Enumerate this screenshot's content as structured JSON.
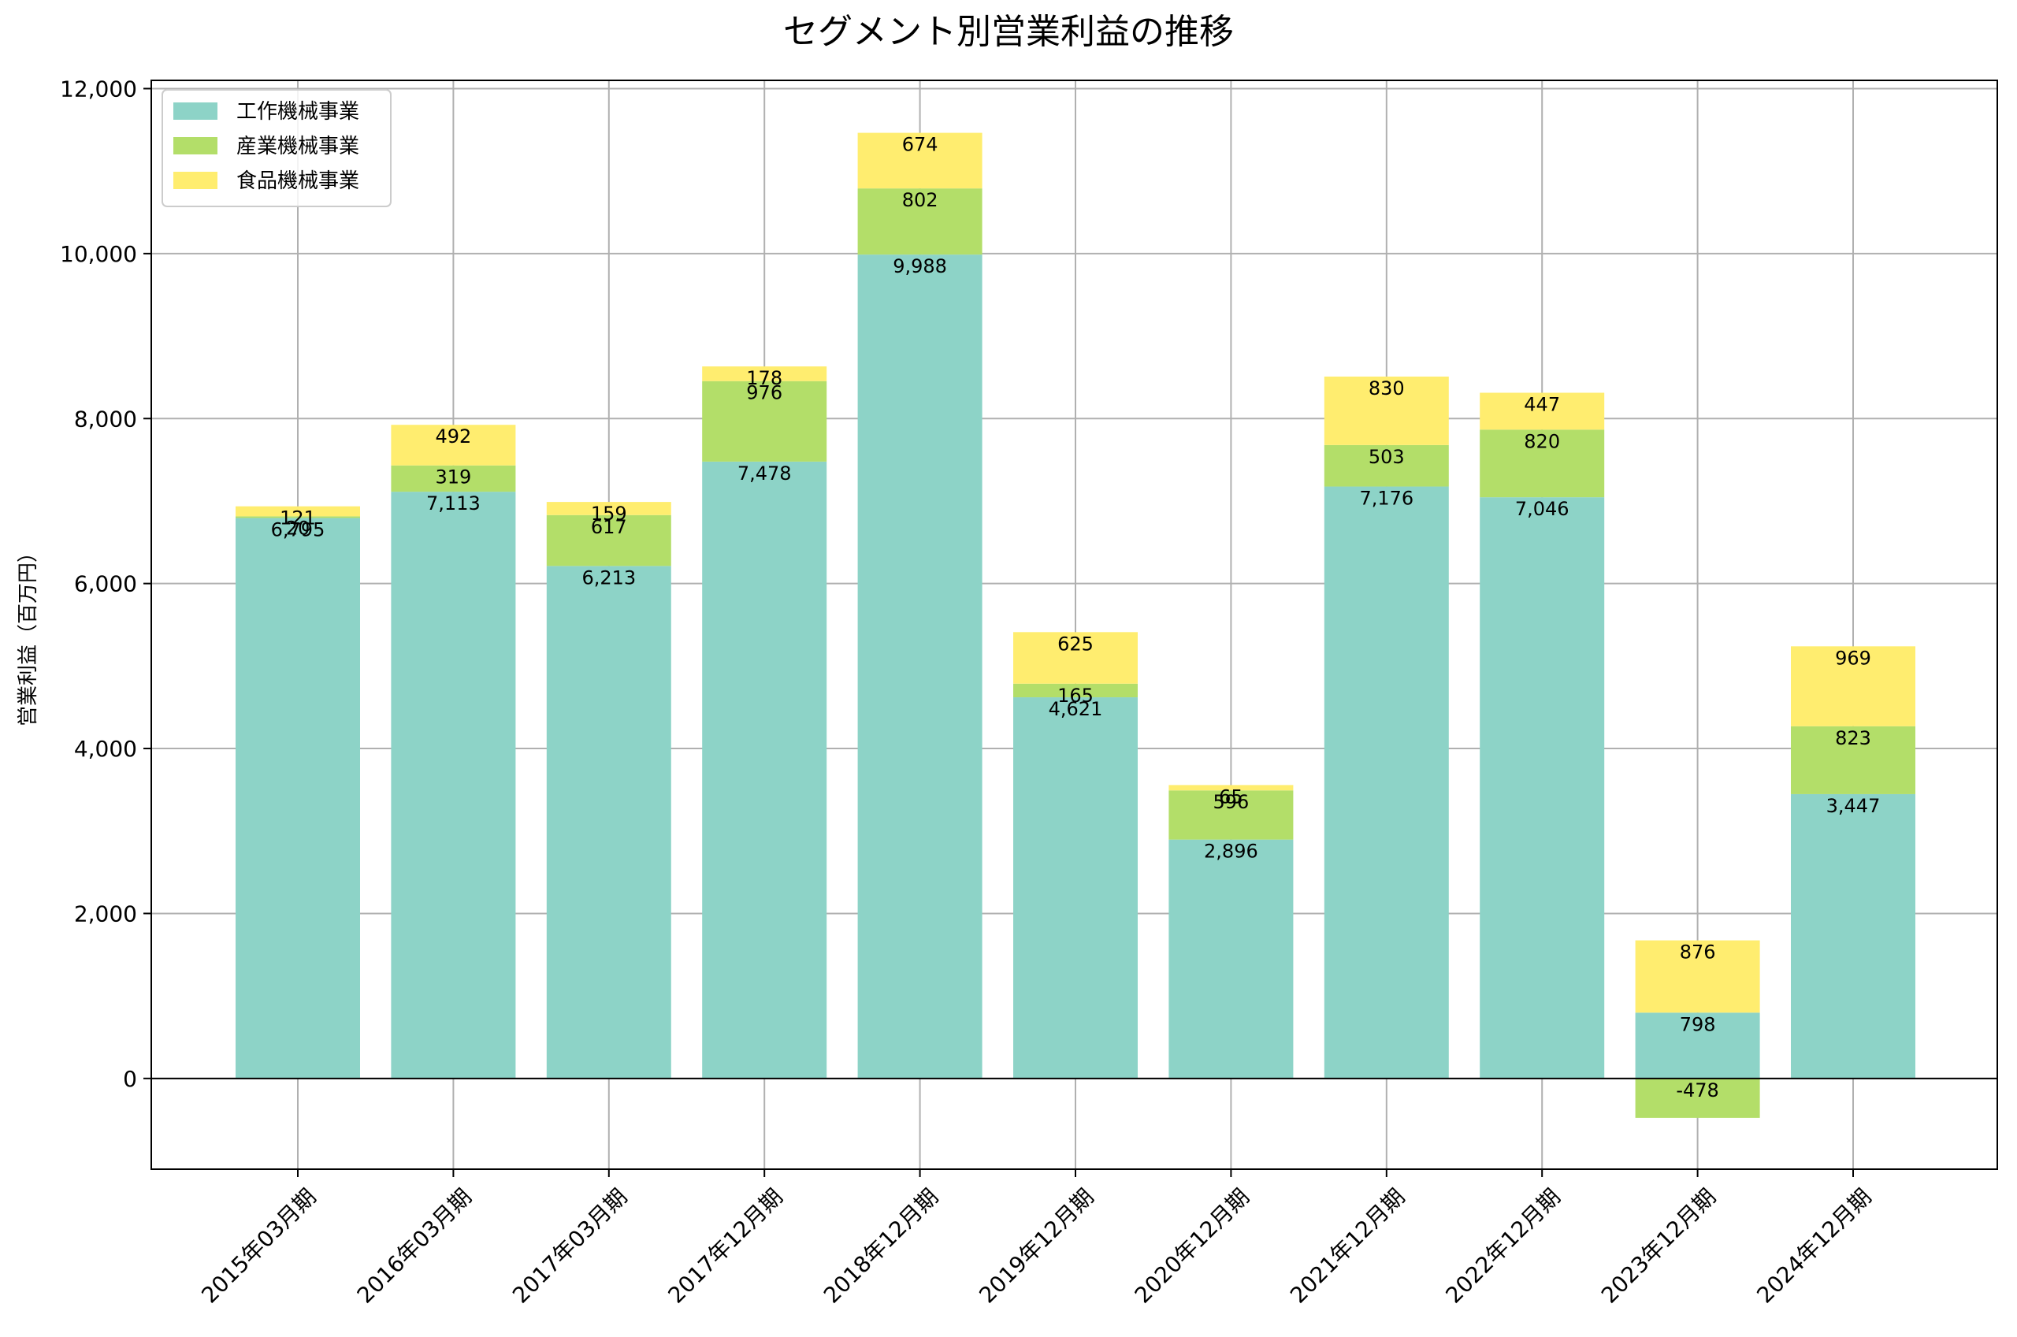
{
  "chart_data": {
    "type": "bar",
    "stacked": true,
    "title": "セグメント別営業利益の推移",
    "xlabel": "",
    "ylabel": "営業利益（百万円）",
    "ylim": [
      -1100,
      12100
    ],
    "yticks": [
      0,
      2000,
      4000,
      6000,
      8000,
      10000,
      12000
    ],
    "ytick_labels": [
      "0",
      "2,000",
      "4,000",
      "6,000",
      "8,000",
      "10,000",
      "12,000"
    ],
    "grid": true,
    "legend_position": "top-left",
    "categories": [
      "2015年03月期",
      "2016年03月期",
      "2017年03月期",
      "2017年12月期",
      "2018年12月期",
      "2019年12月期",
      "2020年12月期",
      "2021年12月期",
      "2022年12月期",
      "2023年12月期",
      "2024年12月期"
    ],
    "series": [
      {
        "name": "工作機械事業",
        "color": "#8dd3c7",
        "values": [
          6795,
          7113,
          6213,
          7478,
          9988,
          4621,
          2896,
          7176,
          7046,
          798,
          3447
        ],
        "labels": [
          "6,795",
          "7,113",
          "6,213",
          "7,478",
          "9,988",
          "4,621",
          "2,896",
          "7,176",
          "7,046",
          "798",
          "3,447"
        ]
      },
      {
        "name": "産業機械事業",
        "color": "#b3de69",
        "values": [
          20,
          319,
          617,
          976,
          802,
          165,
          596,
          503,
          820,
          -478,
          823
        ],
        "labels": [
          "20",
          "319",
          "617",
          "976",
          "802",
          "165",
          "596",
          "503",
          "820",
          "-478",
          "823"
        ]
      },
      {
        "name": "食品機械事業",
        "color": "#ffed6f",
        "values": [
          121,
          492,
          159,
          178,
          674,
          625,
          65,
          830,
          447,
          876,
          969
        ],
        "labels": [
          "121",
          "492",
          "159",
          "178",
          "674",
          "625",
          "65",
          "830",
          "447",
          "876",
          "969"
        ]
      }
    ]
  }
}
